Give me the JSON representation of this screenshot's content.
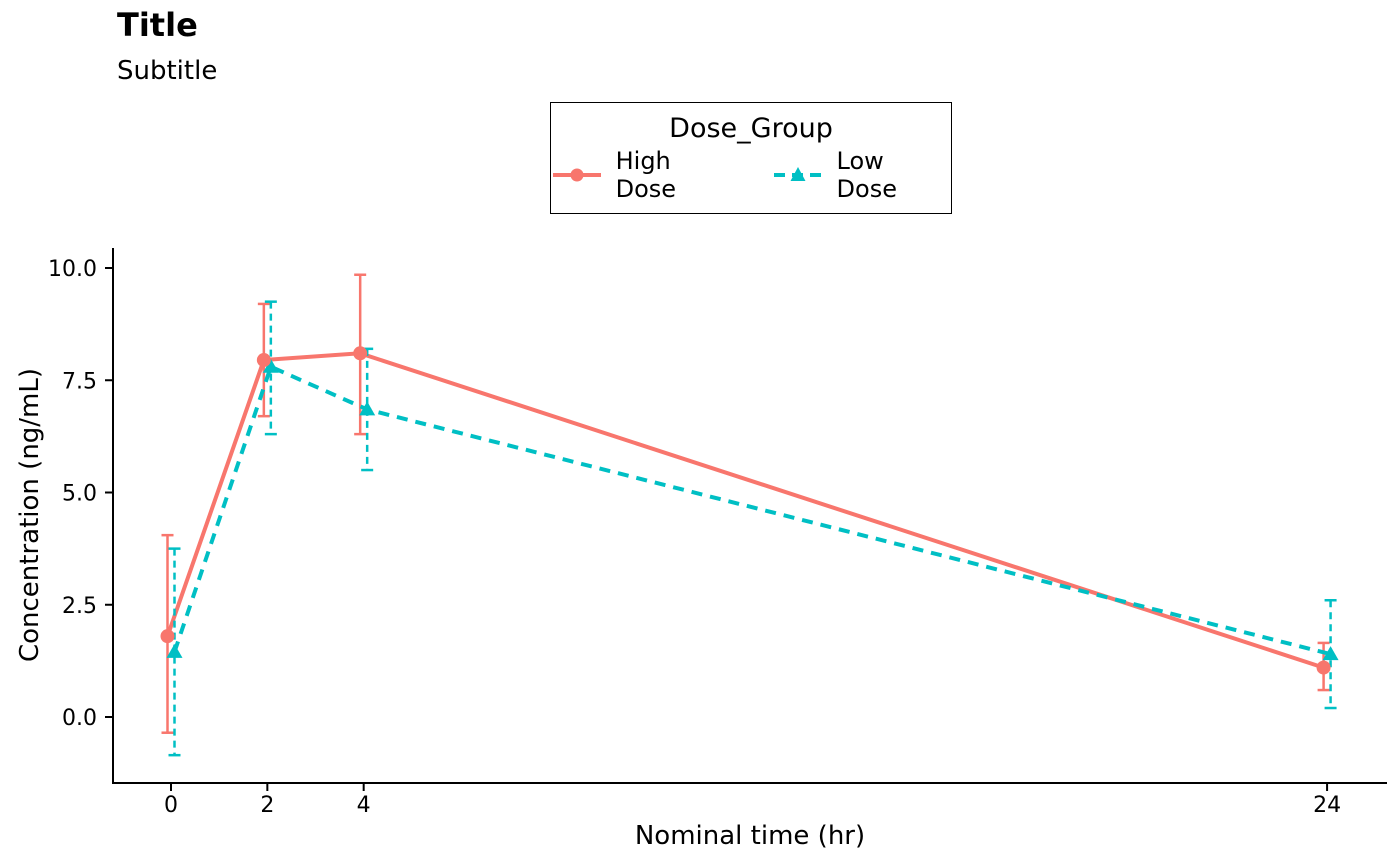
{
  "header": {
    "title": "Title",
    "subtitle": "Subtitle"
  },
  "legend": {
    "title": "Dose_Group",
    "items": [
      {
        "label": "High Dose"
      },
      {
        "label": "Low Dose"
      }
    ]
  },
  "axes": {
    "x_title": "Nominal time (hr)",
    "y_title": "Concentration (ng/mL)"
  },
  "colors": {
    "high_dose": "#F8766D",
    "low_dose": "#00BFC4",
    "axis": "#000000",
    "background": "#FFFFFF"
  },
  "chart_data": {
    "type": "line",
    "title": "Title",
    "subtitle": "Subtitle",
    "xlabel": "Nominal time (hr)",
    "ylabel": "Concentration (ng/mL)",
    "legend_title": "Dose_Group",
    "legend_position": "top-center",
    "grid": false,
    "error_bars": true,
    "xlim": [
      -1.2,
      25.25
    ],
    "ylim": [
      -1.5,
      10.45
    ],
    "x_ticks": [
      0,
      2,
      4,
      24
    ],
    "x_tick_labels": [
      "0",
      "2",
      "4",
      "24"
    ],
    "y_ticks": [
      0,
      2.5,
      5,
      7.5,
      10
    ],
    "y_tick_labels": [
      "0.0",
      "2.5",
      "5.0",
      "7.5",
      "10.0"
    ],
    "series": [
      {
        "name": "High Dose",
        "color": "#F8766D",
        "marker": "circle",
        "linetype": "solid",
        "x": [
          0,
          2,
          4,
          24
        ],
        "mean": [
          1.8,
          7.95,
          8.1,
          1.1
        ],
        "lower": [
          -0.35,
          6.7,
          6.3,
          0.6
        ],
        "upper": [
          4.05,
          9.2,
          9.85,
          1.65
        ]
      },
      {
        "name": "Low Dose",
        "color": "#00BFC4",
        "marker": "triangle",
        "linetype": "dashed",
        "x": [
          0,
          2,
          4,
          24
        ],
        "mean": [
          1.45,
          7.8,
          6.85,
          1.4
        ],
        "lower": [
          -0.85,
          6.3,
          5.5,
          0.2
        ],
        "upper": [
          3.75,
          9.25,
          8.2,
          2.6
        ]
      }
    ]
  }
}
